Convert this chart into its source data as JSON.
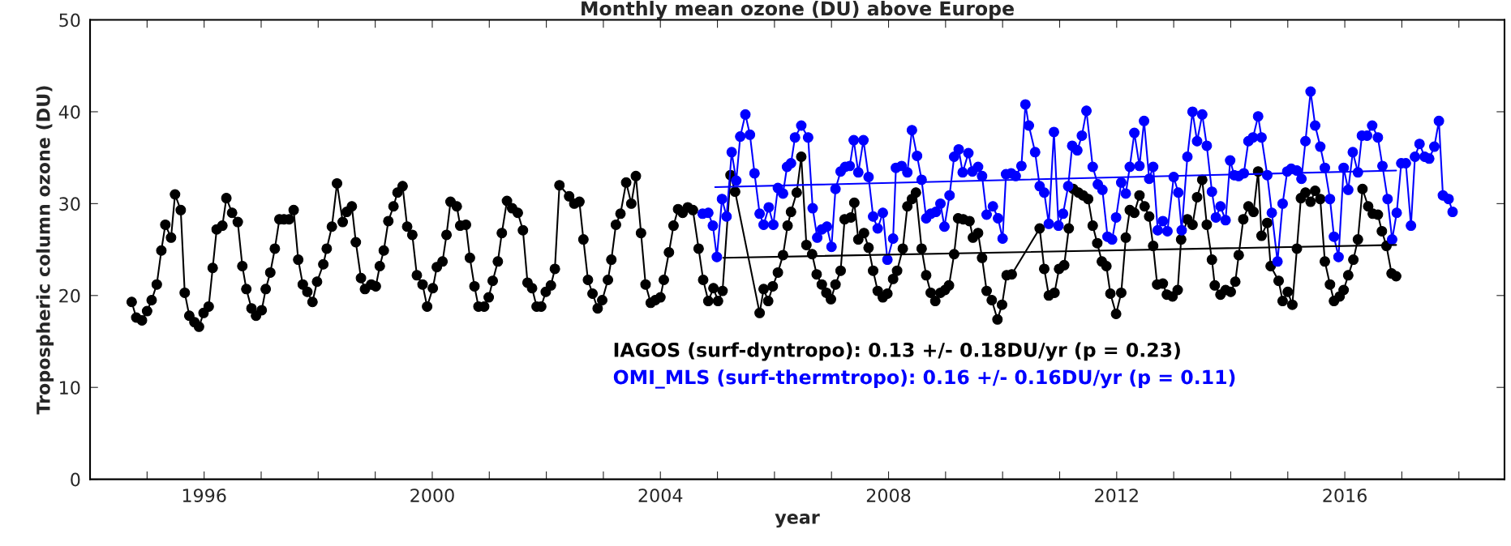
{
  "chart_data": {
    "type": "line",
    "title": "Monthly mean ozone (DU) above Europe",
    "xlabel": "year",
    "ylabel": "Tropospheric column ozone (DU)",
    "xlim": [
      1994,
      2018.8
    ],
    "ylim": [
      0,
      50
    ],
    "yticks": [
      0,
      10,
      20,
      30,
      40,
      50
    ],
    "xticks": [
      {
        "value": 1995,
        "label": null
      },
      1996,
      {
        "value": 1997,
        "label": null
      },
      {
        "value": 1998,
        "label": null
      },
      {
        "value": 1999,
        "label": null
      },
      2000,
      {
        "value": 2001,
        "label": null
      },
      {
        "value": 2002,
        "label": null
      },
      {
        "value": 2003,
        "label": null
      },
      2004,
      {
        "value": 2005,
        "label": null
      },
      {
        "value": 2006,
        "label": null
      },
      {
        "value": 2007,
        "label": null
      },
      2008,
      {
        "value": 2009,
        "label": null
      },
      {
        "value": 2010,
        "label": null
      },
      {
        "value": 2011,
        "label": null
      },
      2012,
      {
        "value": 2013,
        "label": null
      },
      {
        "value": 2014,
        "label": null
      },
      {
        "value": 2015,
        "label": null
      },
      2016,
      {
        "value": 2017,
        "label": null
      },
      {
        "value": 2018,
        "label": null
      }
    ],
    "grid": false,
    "legend": "bottom",
    "marker": "circle",
    "line_style": "solid",
    "series": [
      {
        "name": "IAGOS (surf-dyntropo): 0.13 +/- 0.18DU/yr (p = 0.23)",
        "color": "#000000",
        "x": [
          1994.73,
          1994.81,
          1994.91,
          1995.0,
          1995.08,
          1995.17,
          1995.25,
          1995.32,
          1995.42,
          1995.49,
          1995.59,
          1995.66,
          1995.74,
          1995.83,
          1995.91,
          1995.99,
          1996.08,
          1996.15,
          1996.22,
          1996.32,
          1996.39,
          1996.49,
          1996.59,
          1996.67,
          1996.74,
          1996.83,
          1996.91,
          1997.01,
          1997.08,
          1997.16,
          1997.24,
          1997.32,
          1997.4,
          1997.49,
          1997.57,
          1997.65,
          1997.73,
          1997.81,
          1997.9,
          1997.98,
          1998.09,
          1998.15,
          1998.24,
          1998.33,
          1998.43,
          1998.5,
          1998.59,
          1998.66,
          1998.75,
          1998.82,
          1998.93,
          1999.01,
          1999.08,
          1999.15,
          1999.23,
          1999.32,
          1999.39,
          1999.48,
          1999.56,
          1999.65,
          1999.73,
          1999.83,
          1999.91,
          2000.01,
          2000.08,
          2000.18,
          2000.25,
          2000.32,
          2000.43,
          2000.49,
          2000.59,
          2000.66,
          2000.74,
          2000.81,
          2000.91,
          2000.99,
          2001.06,
          2001.15,
          2001.22,
          2001.31,
          2001.4,
          2001.5,
          2001.59,
          2001.67,
          2001.75,
          2001.83,
          2001.91,
          2001.99,
          2002.08,
          2002.15,
          2002.23,
          2002.4,
          2002.49,
          2002.58,
          2002.65,
          2002.73,
          2002.81,
          2002.9,
          2002.98,
          2003.08,
          2003.14,
          2003.22,
          2003.3,
          2003.4,
          2003.49,
          2003.57,
          2003.66,
          2003.74,
          2003.83,
          2003.91,
          2004.0,
          2004.06,
          2004.15,
          2004.23,
          2004.31,
          2004.39,
          2004.48,
          2004.57,
          2004.67,
          2004.75,
          2004.84,
          2004.93,
          2005.01,
          2005.09,
          2005.23,
          2005.31,
          2005.74,
          2005.81,
          2005.89,
          2005.97,
          2006.06,
          2006.15,
          2006.23,
          2006.29,
          2006.39,
          2006.47,
          2006.56,
          2006.66,
          2006.74,
          2006.83,
          2006.91,
          2006.99,
          2007.07,
          2007.16,
          2007.23,
          2007.34,
          2007.4,
          2007.47,
          2007.57,
          2007.65,
          2007.73,
          2007.81,
          2007.9,
          2007.98,
          2008.08,
          2008.15,
          2008.25,
          2008.33,
          2008.41,
          2008.48,
          2008.58,
          2008.66,
          2008.74,
          2008.82,
          2008.91,
          2008.99,
          2009.06,
          2009.15,
          2009.22,
          2009.31,
          2009.42,
          2009.48,
          2009.57,
          2009.64,
          2009.72,
          2009.81,
          2009.91,
          2009.99,
          2010.07,
          2010.16,
          2010.65,
          2010.73,
          2010.81,
          2010.91,
          2010.99,
          2011.08,
          2011.16,
          2011.24,
          2011.33,
          2011.41,
          2011.5,
          2011.58,
          2011.66,
          2011.74,
          2011.82,
          2011.89,
          2011.99,
          2012.08,
          2012.16,
          2012.23,
          2012.31,
          2012.4,
          2012.49,
          2012.57,
          2012.64,
          2012.71,
          2012.81,
          2012.88,
          2012.98,
          2013.07,
          2013.13,
          2013.24,
          2013.33,
          2013.41,
          2013.5,
          2013.58,
          2013.67,
          2013.72,
          2013.82,
          2013.91,
          2014.0,
          2014.08,
          2014.14,
          2014.22,
          2014.31,
          2014.4,
          2014.48,
          2014.54,
          2014.64,
          2014.7,
          2014.84,
          2014.91,
          2015.0,
          2015.08,
          2015.16,
          2015.23,
          2015.31,
          2015.4,
          2015.48,
          2015.57,
          2015.65,
          2015.74,
          2015.81,
          2015.91,
          2015.98,
          2016.06,
          2016.15,
          2016.23,
          2016.31,
          2016.41,
          2016.49,
          2016.58,
          2016.65,
          2016.73,
          2016.82,
          2016.9
        ],
        "values": [
          19.3,
          17.6,
          17.3,
          18.3,
          19.5,
          21.2,
          24.9,
          27.7,
          26.3,
          31.0,
          29.3,
          20.3,
          17.8,
          17.1,
          16.6,
          18.1,
          18.8,
          23.0,
          27.2,
          27.6,
          30.6,
          29.0,
          28.0,
          23.2,
          20.7,
          18.6,
          17.8,
          18.4,
          20.7,
          22.5,
          25.1,
          28.3,
          28.3,
          28.3,
          29.3,
          23.9,
          21.2,
          20.4,
          19.3,
          21.5,
          23.4,
          25.1,
          27.5,
          32.2,
          28.0,
          29.1,
          29.7,
          25.8,
          21.9,
          20.7,
          21.2,
          21.0,
          23.2,
          24.9,
          28.1,
          29.7,
          31.2,
          31.9,
          27.5,
          26.6,
          22.2,
          21.2,
          18.8,
          20.8,
          23.1,
          23.7,
          26.6,
          30.2,
          29.7,
          27.6,
          27.7,
          24.1,
          21.0,
          18.8,
          18.8,
          19.8,
          21.6,
          23.7,
          26.8,
          30.3,
          29.5,
          29.0,
          27.1,
          21.4,
          20.8,
          18.8,
          18.8,
          20.4,
          21.1,
          22.9,
          32.0,
          30.8,
          30.0,
          30.2,
          26.1,
          21.7,
          20.2,
          18.6,
          19.5,
          21.7,
          23.9,
          27.7,
          28.9,
          32.3,
          30.0,
          33.0,
          26.8,
          21.2,
          19.2,
          19.5,
          19.8,
          21.7,
          24.7,
          27.6,
          29.4,
          29.0,
          29.6,
          29.3,
          25.1,
          21.7,
          19.4,
          20.8,
          19.4,
          20.5,
          33.1,
          31.3,
          18.1,
          20.7,
          19.4,
          21.0,
          22.5,
          24.4,
          27.6,
          29.1,
          31.2,
          35.1,
          25.5,
          24.5,
          22.3,
          21.2,
          20.3,
          19.6,
          21.2,
          22.7,
          28.3,
          28.5,
          30.1,
          26.1,
          26.8,
          25.2,
          22.7,
          20.5,
          19.8,
          20.2,
          21.8,
          22.7,
          25.1,
          29.7,
          30.5,
          31.2,
          25.1,
          22.2,
          20.3,
          19.4,
          20.3,
          20.6,
          21.1,
          24.5,
          28.4,
          28.3,
          28.1,
          26.3,
          26.8,
          24.1,
          20.5,
          19.5,
          17.4,
          19.0,
          22.2,
          22.3,
          27.3,
          22.9,
          20.0,
          20.3,
          22.9,
          23.3,
          27.3,
          31.6,
          31.2,
          30.9,
          30.5,
          27.6,
          25.7,
          23.7,
          23.2,
          20.2,
          18.0,
          20.3,
          26.3,
          29.3,
          29.0,
          30.9,
          29.7,
          28.6,
          25.4,
          21.2,
          21.3,
          20.1,
          19.9,
          20.6,
          26.1,
          28.3,
          27.7,
          30.7,
          32.6,
          27.7,
          23.9,
          21.1,
          20.1,
          20.6,
          20.4,
          21.5,
          24.4,
          28.3,
          29.7,
          29.1,
          33.5,
          26.5,
          27.9,
          23.2,
          21.6,
          19.4,
          20.4,
          19.0,
          25.1,
          30.6,
          31.2,
          30.2,
          31.4,
          30.5,
          23.7,
          21.2,
          19.4,
          19.9,
          20.6,
          22.2,
          23.9,
          26.1,
          31.6,
          29.7,
          28.9,
          28.8,
          27.0,
          25.4,
          22.4,
          22.1
        ]
      },
      {
        "name": "OMI_MLS (surf-thermtropo): 0.16 +/- 0.16DU/yr (p = 0.11)",
        "color": "#0000ff",
        "x": [
          2004.74,
          2004.84,
          2004.92,
          2004.99,
          2005.08,
          2005.16,
          2005.25,
          2005.33,
          2005.4,
          2005.49,
          2005.57,
          2005.65,
          2005.74,
          2005.81,
          2005.9,
          2005.98,
          2006.06,
          2006.15,
          2006.22,
          2006.29,
          2006.36,
          2006.47,
          2006.59,
          2006.67,
          2006.75,
          2006.83,
          2006.92,
          2007.0,
          2007.07,
          2007.16,
          2007.24,
          2007.32,
          2007.39,
          2007.47,
          2007.56,
          2007.65,
          2007.73,
          2007.81,
          2007.9,
          2007.98,
          2008.08,
          2008.13,
          2008.23,
          2008.33,
          2008.41,
          2008.5,
          2008.58,
          2008.66,
          2008.74,
          2008.83,
          2008.91,
          2008.98,
          2009.07,
          2009.15,
          2009.23,
          2009.3,
          2009.4,
          2009.47,
          2009.57,
          2009.64,
          2009.72,
          2009.83,
          2009.92,
          2010.0,
          2010.06,
          2010.15,
          2010.23,
          2010.33,
          2010.4,
          2010.46,
          2010.57,
          2010.65,
          2010.73,
          2010.81,
          2010.9,
          2010.98,
          2011.06,
          2011.15,
          2011.22,
          2011.31,
          2011.39,
          2011.47,
          2011.58,
          2011.67,
          2011.75,
          2011.84,
          2011.92,
          2011.99,
          2012.08,
          2012.16,
          2012.23,
          2012.31,
          2012.4,
          2012.48,
          2012.57,
          2012.64,
          2012.72,
          2012.81,
          2012.89,
          2013.0,
          2013.08,
          2013.14,
          2013.24,
          2013.33,
          2013.41,
          2013.5,
          2013.58,
          2013.67,
          2013.74,
          2013.82,
          2013.91,
          2013.99,
          2014.06,
          2014.14,
          2014.23,
          2014.31,
          2014.39,
          2014.48,
          2014.54,
          2014.64,
          2014.72,
          2014.82,
          2014.91,
          2014.99,
          2015.06,
          2015.16,
          2015.24,
          2015.31,
          2015.4,
          2015.48,
          2015.57,
          2015.65,
          2015.74,
          2015.81,
          2015.89,
          2015.98,
          2016.06,
          2016.14,
          2016.23,
          2016.3,
          2016.39,
          2016.48,
          2016.58,
          2016.66,
          2016.75,
          2016.83,
          2016.91,
          2016.99,
          2017.07,
          2017.16,
          2017.23,
          2017.31,
          2017.4,
          2017.48,
          2017.57,
          2017.65,
          2017.72,
          2017.82,
          2017.89
        ],
        "values": [
          28.9,
          29.0,
          27.6,
          24.2,
          30.5,
          28.6,
          35.6,
          32.5,
          37.3,
          39.7,
          37.5,
          33.3,
          28.9,
          27.7,
          29.6,
          27.7,
          31.7,
          31.1,
          34.0,
          34.4,
          37.2,
          38.5,
          37.2,
          29.5,
          26.3,
          27.2,
          27.5,
          25.3,
          31.6,
          33.5,
          34.0,
          34.1,
          36.9,
          33.4,
          36.9,
          32.9,
          28.6,
          27.3,
          29.0,
          23.9,
          26.2,
          33.9,
          34.1,
          33.4,
          38.0,
          35.2,
          32.6,
          28.4,
          28.9,
          29.1,
          30.0,
          27.5,
          30.9,
          35.1,
          35.9,
          33.4,
          35.5,
          33.5,
          34.0,
          33.0,
          28.8,
          29.7,
          28.4,
          26.2,
          33.2,
          33.3,
          33.0,
          34.1,
          40.8,
          38.5,
          35.6,
          31.9,
          31.2,
          27.8,
          37.8,
          27.6,
          28.9,
          31.9,
          36.3,
          35.8,
          37.4,
          40.1,
          34.0,
          32.1,
          31.5,
          26.4,
          26.1,
          28.5,
          32.3,
          31.1,
          34.0,
          37.7,
          34.1,
          39.0,
          32.7,
          34.0,
          27.1,
          28.1,
          27.0,
          32.9,
          31.2,
          27.1,
          35.1,
          40.0,
          36.8,
          39.7,
          36.3,
          31.3,
          28.5,
          29.7,
          28.2,
          34.7,
          33.1,
          33.0,
          33.3,
          36.8,
          37.2,
          39.5,
          37.2,
          33.1,
          29.0,
          23.7,
          30.0,
          33.5,
          33.8,
          33.6,
          32.7,
          36.8,
          42.2,
          38.5,
          36.2,
          33.9,
          30.5,
          26.4,
          24.2,
          33.9,
          31.5,
          35.6,
          33.4,
          37.4,
          37.4,
          38.5,
          37.2,
          34.1,
          30.5,
          26.1,
          29.0,
          34.4,
          34.4,
          27.6,
          35.1,
          36.5,
          35.1,
          34.9,
          36.2,
          39.0,
          30.9,
          30.5,
          29.1
        ]
      },
      {
        "type": "line",
        "marker": "none",
        "color": "#000000",
        "x": [
          2005.1,
          2016.9
        ],
        "values": [
          24.1,
          25.5
        ]
      },
      {
        "type": "line",
        "marker": "none",
        "color": "#0000ff",
        "x": [
          2004.96,
          2016.9
        ],
        "values": [
          31.8,
          33.6
        ]
      }
    ]
  }
}
